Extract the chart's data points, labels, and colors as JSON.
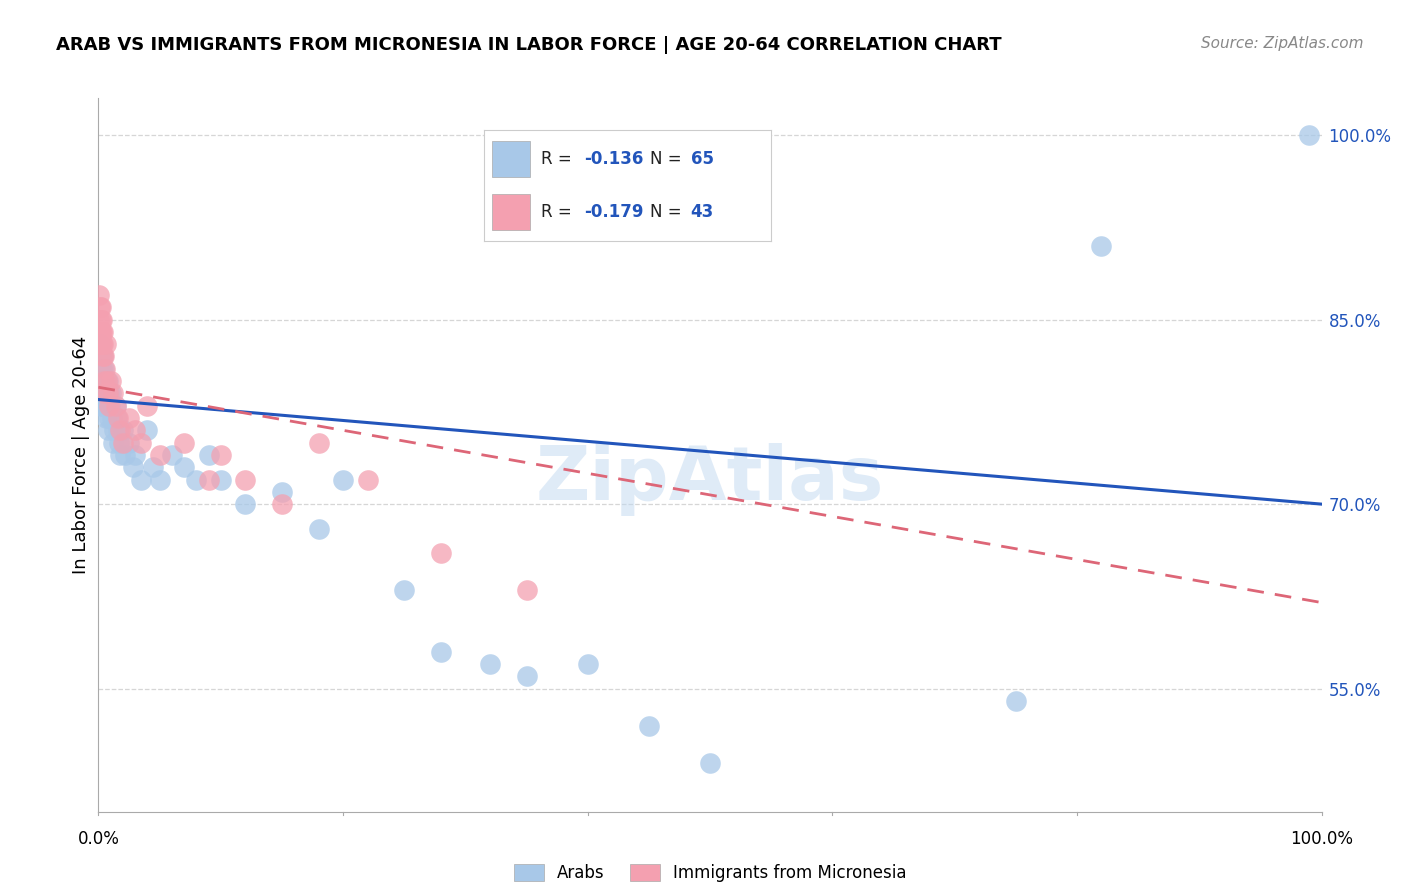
{
  "title": "ARAB VS IMMIGRANTS FROM MICRONESIA IN LABOR FORCE | AGE 20-64 CORRELATION CHART",
  "source": "Source: ZipAtlas.com",
  "ylabel": "In Labor Force | Age 20-64",
  "y_ticks": [
    55.0,
    70.0,
    85.0,
    100.0
  ],
  "x_range": [
    0.0,
    100.0
  ],
  "y_range": [
    45.0,
    103.0
  ],
  "arab_color": "#a8c8e8",
  "micro_color": "#f4a0b0",
  "trend_arab_color": "#2255bb",
  "trend_micro_color": "#dd6677",
  "bg_color": "#ffffff",
  "grid_color": "#cccccc",
  "watermark": "ZipAtlas",
  "arab_x": [
    0.05,
    0.08,
    0.1,
    0.12,
    0.15,
    0.18,
    0.2,
    0.22,
    0.25,
    0.28,
    0.3,
    0.32,
    0.35,
    0.38,
    0.4,
    0.42,
    0.45,
    0.48,
    0.5,
    0.55,
    0.6,
    0.65,
    0.7,
    0.75,
    0.8,
    0.85,
    0.9,
    0.95,
    1.0,
    1.1,
    1.2,
    1.3,
    1.4,
    1.5,
    1.6,
    1.7,
    1.8,
    2.0,
    2.2,
    2.5,
    2.8,
    3.0,
    3.5,
    4.0,
    4.5,
    5.0,
    6.0,
    7.0,
    8.0,
    9.0,
    10.0,
    12.0,
    15.0,
    18.0,
    20.0,
    25.0,
    28.0,
    32.0,
    35.0,
    40.0,
    45.0,
    50.0,
    75.0,
    82.0,
    99.0
  ],
  "arab_y": [
    80.0,
    82.0,
    79.0,
    81.0,
    83.0,
    80.0,
    78.0,
    82.0,
    79.0,
    80.0,
    81.0,
    79.0,
    80.0,
    82.0,
    78.0,
    80.0,
    81.0,
    79.0,
    78.0,
    80.0,
    77.0,
    79.0,
    78.0,
    80.0,
    76.0,
    79.0,
    77.0,
    78.0,
    79.0,
    77.0,
    75.0,
    76.0,
    78.0,
    77.0,
    76.0,
    75.0,
    74.0,
    76.0,
    74.0,
    75.0,
    73.0,
    74.0,
    72.0,
    76.0,
    73.0,
    72.0,
    74.0,
    73.0,
    72.0,
    74.0,
    72.0,
    70.0,
    71.0,
    68.0,
    72.0,
    63.0,
    58.0,
    57.0,
    56.0,
    57.0,
    52.0,
    49.0,
    54.0,
    91.0,
    100.0
  ],
  "micro_x": [
    0.05,
    0.08,
    0.1,
    0.12,
    0.15,
    0.18,
    0.2,
    0.22,
    0.25,
    0.28,
    0.3,
    0.32,
    0.35,
    0.38,
    0.4,
    0.42,
    0.45,
    0.5,
    0.55,
    0.6,
    0.7,
    0.8,
    0.9,
    1.0,
    1.2,
    1.4,
    1.6,
    1.8,
    2.0,
    2.5,
    3.0,
    3.5,
    4.0,
    5.0,
    7.0,
    9.0,
    10.0,
    12.0,
    15.0,
    18.0,
    22.0,
    28.0,
    35.0
  ],
  "micro_y": [
    87.0,
    85.0,
    84.0,
    86.0,
    83.0,
    85.0,
    84.0,
    83.0,
    86.0,
    84.0,
    85.0,
    83.0,
    82.0,
    84.0,
    83.0,
    82.0,
    80.0,
    81.0,
    79.0,
    83.0,
    80.0,
    79.0,
    78.0,
    80.0,
    79.0,
    78.0,
    77.0,
    76.0,
    75.0,
    77.0,
    76.0,
    75.0,
    78.0,
    74.0,
    75.0,
    72.0,
    74.0,
    72.0,
    70.0,
    75.0,
    72.0,
    66.0,
    63.0
  ],
  "arab_trend_x0": 0.0,
  "arab_trend_y0": 78.5,
  "arab_trend_x1": 100.0,
  "arab_trend_y1": 70.0,
  "micro_trend_x0": 0.0,
  "micro_trend_y0": 79.5,
  "micro_trend_x1": 100.0,
  "micro_trend_y1": 62.0
}
